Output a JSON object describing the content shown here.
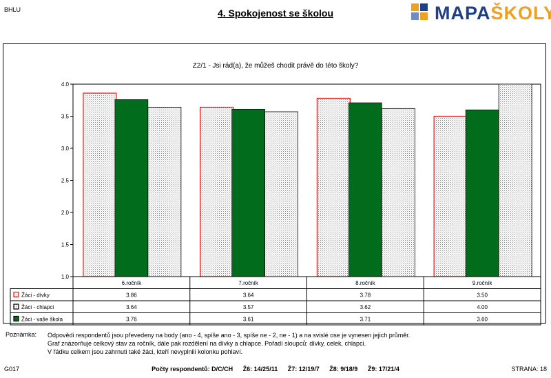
{
  "header": {
    "code": "BHLU",
    "title": "4. Spokojenost se školou",
    "logo_part1": "MAPA",
    "logo_part2": "ŠKOLY"
  },
  "colors": {
    "girls_border": "#e0201e",
    "school_fill": "#006c1c",
    "boys_border": "#000000",
    "logo_blue": "#1f3f86",
    "logo_orange": "#f0a020"
  },
  "chart_data": {
    "type": "bar",
    "title": "Z2/1 - Jsi rád(a), že můžeš chodit právě do této školy?",
    "categories": [
      "6.ročník",
      "7.ročník",
      "8.ročník",
      "9.ročník"
    ],
    "series": [
      {
        "name": "Žáci - dívky",
        "values": [
          3.86,
          3.64,
          3.78,
          3.5
        ],
        "value_labels": [
          "3.86",
          "3.64",
          "3.78",
          "3.50"
        ],
        "style": "dotted-red-border"
      },
      {
        "name": "Žáci - vaše škola",
        "values": [
          3.76,
          3.61,
          3.71,
          3.6
        ],
        "value_labels": [
          "3.76",
          "3.61",
          "3.71",
          "3.60"
        ],
        "style": "solid-green"
      },
      {
        "name": "Žáci - chlapci",
        "values": [
          3.64,
          3.57,
          3.62,
          4.0
        ],
        "value_labels": [
          "3.64",
          "3.57",
          "3.62",
          "4.00"
        ],
        "style": "dotted-black-border"
      }
    ],
    "table_rows": [
      {
        "name": "Žáci - dívky",
        "values": [
          "3.86",
          "3.64",
          "3.78",
          "3.50"
        ],
        "style": "dotted-red-border"
      },
      {
        "name": "Žáci - chlapci",
        "values": [
          "3.64",
          "3.57",
          "3.62",
          "4.00"
        ],
        "style": "dotted-black-border"
      },
      {
        "name": "Žáci - vaše škola",
        "values": [
          "3.76",
          "3.61",
          "3.71",
          "3.60"
        ],
        "style": "solid-green"
      }
    ],
    "ylim": [
      1.0,
      4.0
    ],
    "yticks": [
      "1.0",
      "1.5",
      "2.0",
      "2.5",
      "3.0",
      "3.5",
      "4.0"
    ],
    "ytick_values": [
      1.0,
      1.5,
      2.0,
      2.5,
      3.0,
      3.5,
      4.0
    ],
    "grid": false,
    "legend": "data-table"
  },
  "note": {
    "label": "Poznámka:",
    "lines": [
      "Odpovědi respondentů jsou převedeny na body (ano - 4, spíše ano - 3, spíše ne - 2, ne - 1) a na svislé ose je vynesen jejich průměr.",
      "Graf znázorňuje celkový stav za ročník, dále pak rozdělení na dívky a chlapce. Pořadí sloupců: dívky, celek, chlapci.",
      "V řádku celkem jsou zahrnuti také žáci, kteří nevyplnili kolonku pohlaví."
    ]
  },
  "footer": {
    "code": "G017",
    "counts_label": "Počty respondentů: D/C/CH",
    "counts": [
      "Ž6: 14/25/11",
      "Ž7: 12/19/7",
      "Ž8: 9/18/9",
      "Ž9: 17/21/4"
    ],
    "page": "STRANA: 18"
  }
}
